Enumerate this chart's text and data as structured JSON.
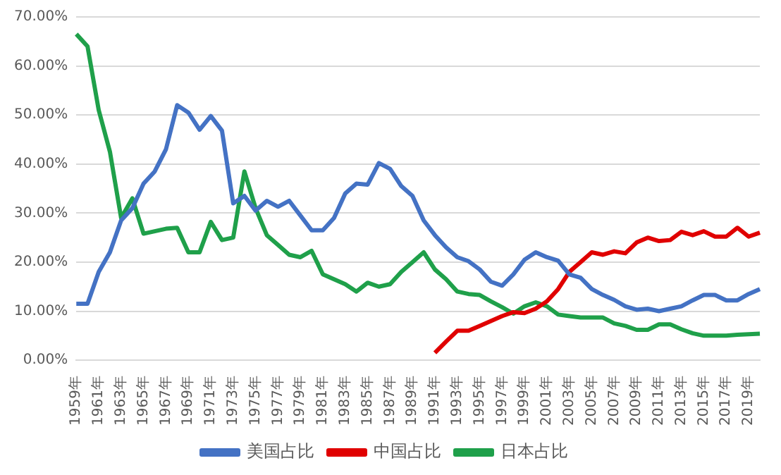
{
  "chart_data": {
    "type": "line",
    "categories": [
      "1959年",
      null,
      "1961年",
      null,
      "1963年",
      null,
      "1965年",
      null,
      "1967年",
      null,
      "1969年",
      null,
      "1971年",
      null,
      "1973年",
      null,
      "1975年",
      null,
      "1977年",
      null,
      "1979年",
      null,
      "1981年",
      null,
      "1983年",
      null,
      "1985年",
      null,
      "1987年",
      null,
      "1989年",
      null,
      "1991年",
      null,
      "1993年",
      null,
      "1995年",
      null,
      "1997年",
      null,
      "1999年",
      null,
      "2001年",
      null,
      "2003年",
      null,
      "2005年",
      null,
      "2007年",
      null,
      "2009年",
      null,
      "2011年",
      null,
      "2013年",
      null,
      "2015年",
      null,
      "2017年",
      null,
      "2019年",
      null
    ],
    "series": [
      {
        "name": "美国占比",
        "color": "#4472c4",
        "values": [
          11.5,
          11.5,
          18,
          22,
          28.5,
          31,
          36,
          38.5,
          43,
          52,
          50.5,
          47,
          49.8,
          46.8,
          32,
          33.5,
          30.5,
          32.5,
          31.3,
          32.5,
          29.5,
          26.5,
          26.5,
          29,
          34,
          36,
          35.8,
          40.2,
          39,
          35.5,
          33.5,
          28.5,
          25.5,
          23,
          21,
          20.2,
          18.5,
          16,
          15.2,
          17.5,
          20.5,
          22,
          21,
          20.3,
          17.5,
          16.8,
          14.5,
          13.3,
          12.3,
          11,
          10.3,
          10.5,
          10,
          10.5,
          11,
          12.2,
          13.3,
          13.3,
          12.2,
          12.2,
          13.5,
          14.5
        ]
      },
      {
        "name": "中国占比",
        "color": "#e00000",
        "values": [
          null,
          null,
          null,
          null,
          null,
          null,
          null,
          null,
          null,
          null,
          null,
          null,
          null,
          null,
          null,
          null,
          null,
          null,
          null,
          null,
          null,
          null,
          null,
          null,
          null,
          null,
          null,
          null,
          null,
          null,
          null,
          null,
          1.5,
          3.8,
          6,
          6,
          7,
          8,
          9,
          9.8,
          9.6,
          10.5,
          12,
          14.5,
          18,
          20,
          22,
          21.5,
          22.2,
          21.8,
          24,
          25,
          24.3,
          24.5,
          26.2,
          25.5,
          26.3,
          25.2,
          25.2,
          27,
          25.2,
          26
        ]
      },
      {
        "name": "日本占比",
        "color": "#1fa04a",
        "values": [
          66.5,
          64,
          51,
          42.5,
          29,
          33,
          25.8,
          26.3,
          26.8,
          27,
          22,
          22,
          28.2,
          24.5,
          25,
          38.5,
          31,
          25.5,
          23.5,
          21.5,
          21,
          22.3,
          17.5,
          16.5,
          15.5,
          14,
          15.8,
          15,
          15.5,
          18,
          20,
          22,
          18.5,
          16.5,
          14,
          13.5,
          13.3,
          12,
          10.8,
          9.5,
          11,
          11.8,
          11,
          9.3,
          9,
          8.7,
          8.7,
          8.7,
          7.5,
          7,
          6.2,
          6.2,
          7.3,
          7.3,
          6.3,
          5.5,
          5,
          5,
          5,
          5.2,
          5.3,
          5.4
        ]
      }
    ],
    "ylim": [
      0,
      70
    ],
    "yticks": [
      {
        "value": 0,
        "label": "0.00%"
      },
      {
        "value": 10,
        "label": "10.00%"
      },
      {
        "value": 20,
        "label": "20.00%"
      },
      {
        "value": 30,
        "label": "30.00%"
      },
      {
        "value": 40,
        "label": "40.00%"
      },
      {
        "value": 50,
        "label": "50.00%"
      },
      {
        "value": 60,
        "label": "60.00%"
      },
      {
        "value": 70,
        "label": "70.00%"
      }
    ],
    "grid": "y",
    "legend": "bottom",
    "marker": "none",
    "line_style": "solid"
  }
}
